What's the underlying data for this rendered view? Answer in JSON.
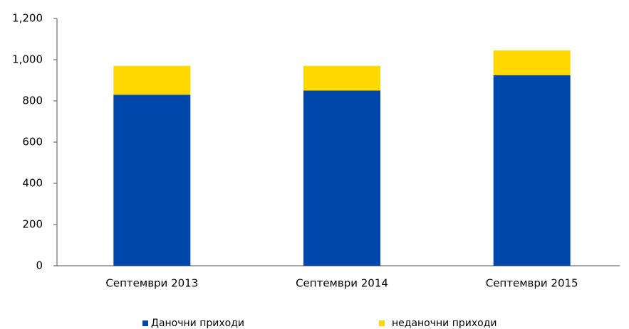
{
  "chart_data": {
    "type": "stacked_bar",
    "categories": [
      "Септември 2013",
      "Септември 2014",
      "Септември 2015"
    ],
    "series": [
      {
        "name": "Даночни приходи",
        "color": "#0047ab",
        "values": [
          830,
          850,
          925
        ]
      },
      {
        "name": "неданочни приходи",
        "color": "#ffd800",
        "values": [
          140,
          120,
          120
        ]
      }
    ],
    "ylim": [
      0,
      1200
    ],
    "yticks": [
      0,
      200,
      400,
      600,
      800,
      {
        "value": 1000,
        "label": "1,000"
      },
      {
        "value": 1200,
        "label": "1,200"
      }
    ],
    "grid": false,
    "legend": "bottom"
  }
}
